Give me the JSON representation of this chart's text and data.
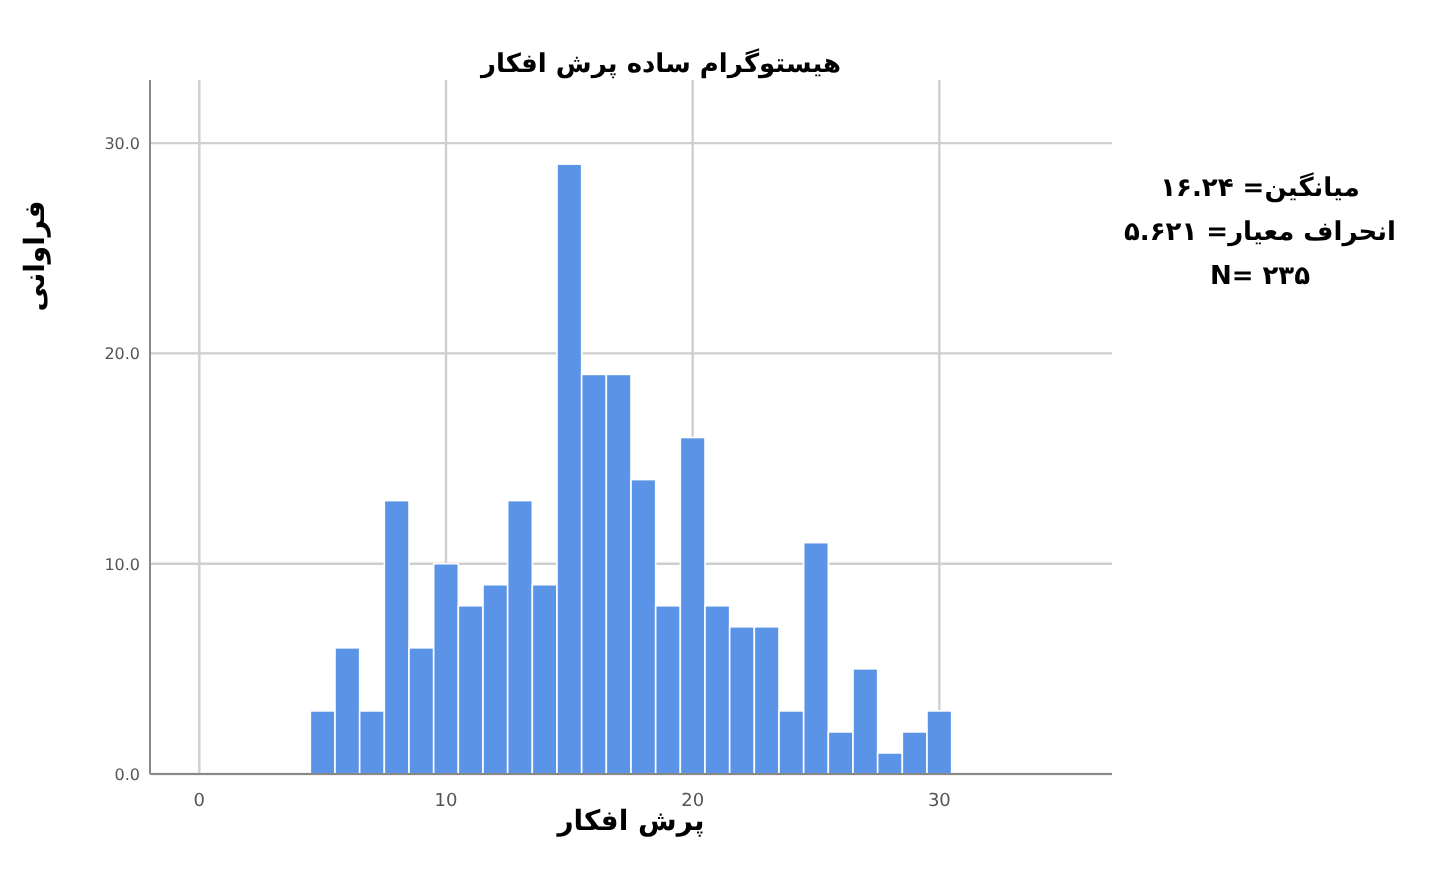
{
  "chart_data": {
    "type": "histogram",
    "title": "هیستوگرام ساده پرش افکار",
    "xlabel": "پرش افکار",
    "ylabel": "فراوانی",
    "bins": [
      4.5,
      5.5,
      6.5,
      7.5,
      8.5,
      9.5,
      10.5,
      11.5,
      12.5,
      13.5,
      14.5,
      15.5,
      16.5,
      17.5,
      18.5,
      19.5,
      20.5,
      21.5,
      22.5,
      23.5,
      24.5,
      25.5,
      26.5,
      27.5,
      28.5,
      29.5,
      30.5
    ],
    "values": [
      3,
      6,
      3,
      13,
      6,
      10,
      8,
      9,
      13,
      9,
      29,
      19,
      19,
      14,
      8,
      16,
      8,
      7,
      7,
      3,
      11,
      2,
      5,
      1,
      2,
      3
    ],
    "color": "#5b93e6",
    "xlim": [
      -2,
      37
    ],
    "xticks": [
      0,
      10,
      20,
      30
    ],
    "ylim": [
      0,
      33
    ],
    "yticks": [
      {
        "value": 0,
        "label": "0.0"
      },
      {
        "value": 10,
        "label": "10.0"
      },
      {
        "value": 20,
        "label": "20.0"
      },
      {
        "value": 30,
        "label": "30.0"
      }
    ],
    "grid": true,
    "annotations": [
      "میانگین= ۱۶.۲۴",
      "انحراف معیار= ۵.۶۲۱",
      "N= ۲۳۵"
    ]
  }
}
